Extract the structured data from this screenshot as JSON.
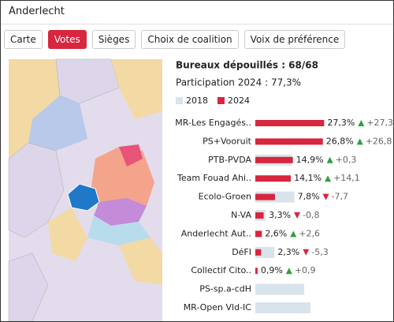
{
  "header": {
    "title": "Anderlecht"
  },
  "tabs": [
    "Carte",
    "Votes",
    "Sièges",
    "Choix de coalition",
    "Voix de préférence"
  ],
  "summary": {
    "counted": "Bureaux dépouillés : 68/68",
    "turnout": "Participation 2024 : 77,3%"
  },
  "chart_data": {
    "type": "bar",
    "categories": [
      "MR-Les Engagés..",
      "PS+Vooruit",
      "PTB-PVDA",
      "Team Fouad Ahi..",
      "Ecolo-Groen",
      "N-VA",
      "Anderlecht Aut..",
      "DéFI",
      "Collectif Cito..",
      "PS-sp.a-cdH",
      "MR-Open Vld-IC"
    ],
    "series": [
      {
        "name": "2018",
        "color": "#d9e3ec",
        "values": [
          0,
          0,
          14.6,
          0,
          15.5,
          4.1,
          0,
          7.6,
          0,
          19.4,
          21.9
        ]
      },
      {
        "name": "2024",
        "color": "#d7263d",
        "values": [
          27.3,
          26.8,
          14.9,
          14.1,
          7.8,
          3.3,
          2.6,
          2.3,
          0.9,
          null,
          null
        ],
        "value_labels": [
          "27,3%",
          "26,8%",
          "14,9%",
          "14,1%",
          "7,8%",
          "3,3%",
          "2,6%",
          "2,3%",
          "0,9%",
          null,
          null
        ]
      }
    ],
    "changes": [
      27.3,
      26.8,
      0.3,
      14.1,
      -7.7,
      -0.8,
      2.6,
      -5.3,
      0.9,
      null,
      null
    ],
    "change_labels": [
      "+27,3",
      "+26,8",
      "+0,3",
      "+14,1",
      "-7,7",
      "-0,8",
      "+2,6",
      "-5,3",
      "+0,9",
      null,
      null
    ]
  }
}
